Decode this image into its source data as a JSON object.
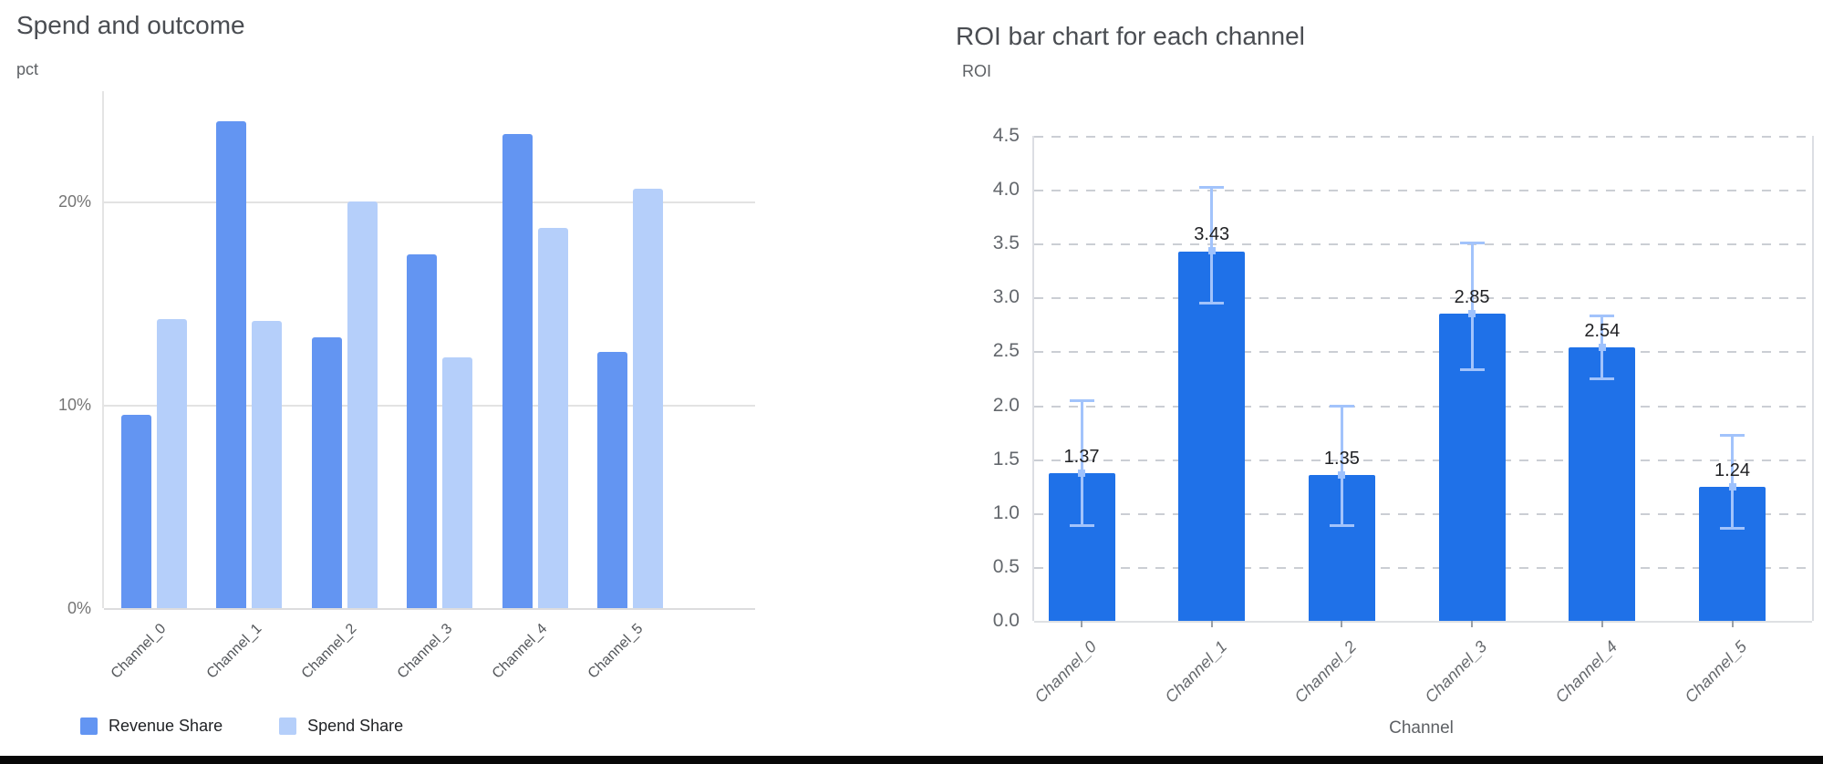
{
  "left_chart_title": "Spend and outcome",
  "right_chart_title": "ROI bar chart for each channel",
  "chart_data": [
    {
      "type": "bar",
      "title": "Spend and outcome",
      "xlabel": "",
      "ylabel": "pct",
      "categories": [
        "Channel_0",
        "Channel_1",
        "Channel_2",
        "Channel_3",
        "Channel_4",
        "Channel_5"
      ],
      "series": [
        {
          "name": "Revenue Share",
          "color": "#6395f2",
          "values": [
            9.5,
            23.9,
            13.3,
            17.4,
            23.3,
            12.6
          ]
        },
        {
          "name": "Spend Share",
          "color": "#b5cffa",
          "values": [
            14.2,
            14.1,
            20.0,
            12.3,
            18.7,
            20.6
          ]
        }
      ],
      "y_tick_values": [
        0,
        10,
        20
      ],
      "y_tick_labels": [
        "0%",
        "10%",
        "20%"
      ],
      "ylim": [
        0,
        25.4
      ],
      "grid": "solid",
      "legend_position": "bottom"
    },
    {
      "type": "bar",
      "title": "ROI bar chart for each channel",
      "xlabel": "Channel",
      "ylabel": "ROI",
      "categories": [
        "Channel_0",
        "Channel_1",
        "Channel_2",
        "Channel_3",
        "Channel_4",
        "Channel_5"
      ],
      "values": [
        1.37,
        3.43,
        1.35,
        2.85,
        2.54,
        1.24
      ],
      "value_labels": [
        "1.37",
        "3.43",
        "1.35",
        "2.85",
        "2.54",
        "1.24"
      ],
      "error_low": [
        0.88,
        2.95,
        0.88,
        2.33,
        2.25,
        0.86
      ],
      "error_high": [
        2.04,
        4.02,
        1.99,
        3.51,
        2.83,
        1.72
      ],
      "y_tick_values": [
        0,
        0.5,
        1.0,
        1.5,
        2.0,
        2.5,
        3.0,
        3.5,
        4.0,
        4.5
      ],
      "y_tick_labels": [
        "0.0",
        "0.5",
        "1.0",
        "1.5",
        "2.0",
        "2.5",
        "3.0",
        "3.5",
        "4.0",
        "4.5"
      ],
      "ylim": [
        0,
        4.5
      ],
      "bar_color": "#1f71e8",
      "error_color": "#a2c3fb",
      "marker_color": "#9ec2fd",
      "grid": "dashed",
      "legend_position": "none"
    }
  ]
}
